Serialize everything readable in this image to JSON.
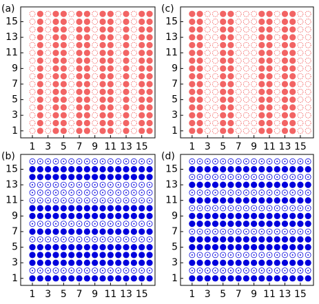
{
  "chart_data": [
    {
      "type": "dots",
      "label": "(a)",
      "color": "#f26464",
      "fill_by": "column",
      "x": [
        1,
        2,
        3,
        4,
        5,
        6,
        7,
        8,
        9,
        10,
        11,
        12,
        13,
        14,
        15,
        16
      ],
      "y": [
        1,
        2,
        3,
        4,
        5,
        6,
        7,
        8,
        9,
        10,
        11,
        12,
        13,
        14,
        15,
        16
      ],
      "filled": [
        0,
        1,
        0,
        1,
        1,
        0,
        1,
        1,
        0,
        1,
        1,
        0,
        1,
        0,
        1,
        1
      ],
      "xlim": [
        -0.5,
        16.7
      ],
      "ylim": [
        0.1,
        16.9
      ],
      "xticks": [
        1,
        3,
        5,
        7,
        9,
        11,
        13,
        15
      ],
      "yticks": [
        1,
        3,
        5,
        7,
        9,
        11,
        13,
        15
      ]
    },
    {
      "type": "dots",
      "label": "(c)",
      "color": "#f26464",
      "fill_by": "column",
      "x": [
        1,
        2,
        3,
        4,
        5,
        6,
        7,
        8,
        9,
        10,
        11,
        12,
        13,
        14,
        15,
        16
      ],
      "y": [
        1,
        2,
        3,
        4,
        5,
        6,
        7,
        8,
        9,
        10,
        11,
        12,
        13,
        14,
        15,
        16
      ],
      "filled": [
        1,
        1,
        0,
        0,
        1,
        1,
        0,
        0,
        0,
        1,
        1,
        0,
        1,
        1,
        0,
        0
      ],
      "xlim": [
        -0.5,
        16.7
      ],
      "ylim": [
        0.1,
        16.9
      ],
      "xticks": [
        1,
        3,
        5,
        7,
        9,
        11,
        13,
        15
      ],
      "yticks": [
        1,
        3,
        5,
        7,
        9,
        11,
        13,
        15
      ]
    },
    {
      "type": "dots",
      "label": "(b)",
      "color": "#0000dd",
      "fill_by": "row",
      "x": [
        1,
        2,
        3,
        4,
        5,
        6,
        7,
        8,
        9,
        10,
        11,
        12,
        13,
        14,
        15,
        16
      ],
      "y": [
        1,
        2,
        3,
        4,
        5,
        6,
        7,
        8,
        9,
        10,
        11,
        12,
        13,
        14,
        15,
        16
      ],
      "filled": [
        1,
        0,
        1,
        1,
        1,
        0,
        1,
        0,
        1,
        1,
        0,
        0,
        0,
        1,
        1,
        0
      ],
      "xlim": [
        -0.5,
        16.7
      ],
      "ylim": [
        0.1,
        16.9
      ],
      "xticks": [
        1,
        3,
        5,
        7,
        9,
        11,
        13,
        15
      ],
      "yticks": [
        1,
        3,
        5,
        7,
        9,
        11,
        13,
        15
      ]
    },
    {
      "type": "dots",
      "label": "(d)",
      "color": "#0000dd",
      "fill_by": "row",
      "x": [
        1,
        2,
        3,
        4,
        5,
        6,
        7,
        8,
        9,
        10,
        11,
        12,
        13,
        14,
        15,
        16
      ],
      "y": [
        1,
        2,
        3,
        4,
        5,
        6,
        7,
        8,
        9,
        10,
        11,
        12,
        13,
        14,
        15,
        16
      ],
      "filled": [
        1,
        0,
        1,
        0,
        1,
        1,
        0,
        1,
        1,
        0,
        1,
        0,
        1,
        0,
        1,
        0
      ],
      "xlim": [
        -0.5,
        16.7
      ],
      "ylim": [
        0.1,
        16.9
      ],
      "xticks": [
        1,
        3,
        5,
        7,
        9,
        11,
        13,
        15
      ],
      "yticks": [
        1,
        3,
        5,
        7,
        9,
        11,
        13,
        15
      ]
    }
  ]
}
